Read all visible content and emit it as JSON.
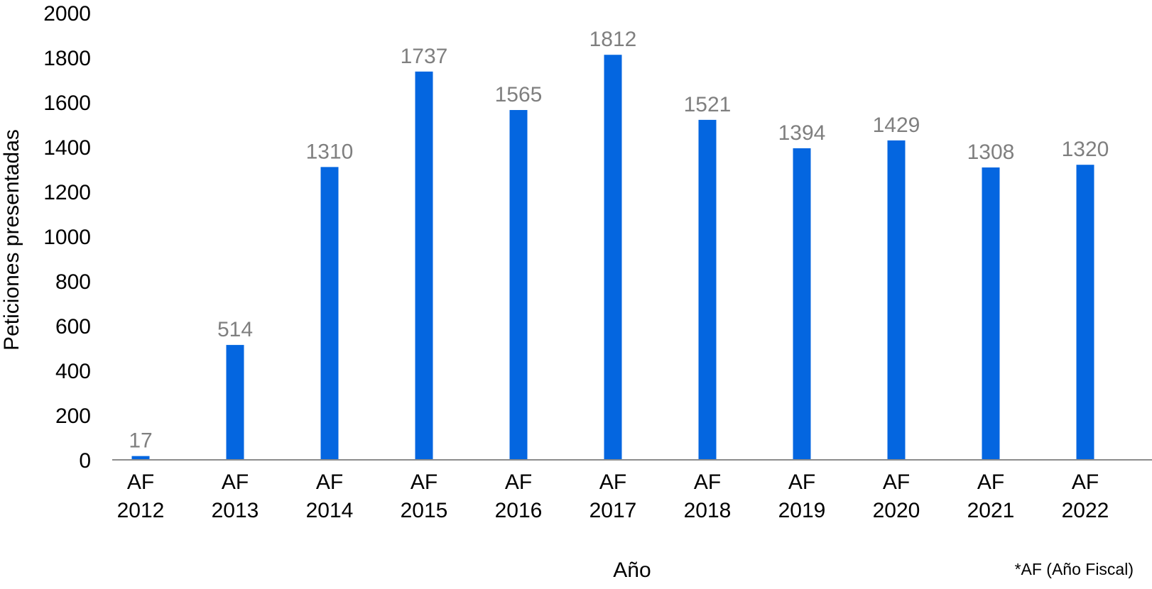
{
  "chart_data": {
    "type": "bar",
    "categories": [
      [
        "AF",
        "2012"
      ],
      [
        "AF",
        "2013"
      ],
      [
        "AF",
        "2014"
      ],
      [
        "AF",
        "2015"
      ],
      [
        "AF",
        "2016"
      ],
      [
        "AF",
        "2017"
      ],
      [
        "AF",
        "2018"
      ],
      [
        "AF",
        "2019"
      ],
      [
        "AF",
        "2020"
      ],
      [
        "AF",
        "2021"
      ],
      [
        "AF",
        "2022"
      ]
    ],
    "values": [
      17,
      514,
      1310,
      1737,
      1565,
      1812,
      1521,
      1394,
      1429,
      1308,
      1320
    ],
    "data_labels": [
      "17",
      "514",
      "1310",
      "1737",
      "1565",
      "1812",
      "1521",
      "1394",
      "1429",
      "1308",
      "1320"
    ],
    "ylim": [
      0,
      2000
    ],
    "yticks": [
      0,
      200,
      400,
      600,
      800,
      1000,
      1200,
      1400,
      1600,
      1800,
      2000
    ],
    "xlabel": "Año",
    "ylabel": "Peticiones presentadas",
    "footnote": "*AF (Año Fiscal)",
    "grid": false,
    "legend": "none",
    "bar_color": "#0466e0",
    "data_label_color": "#7f7f7f",
    "axis_color": "#8c8c8c"
  }
}
